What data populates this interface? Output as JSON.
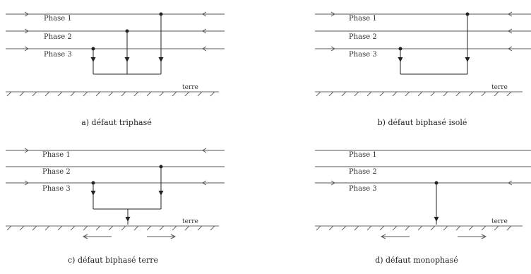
{
  "phases": [
    "Phase 1",
    "Phase 2",
    "Phase 3"
  ],
  "ground_label": "terre",
  "colors": {
    "line": "#555555",
    "ink": "#222222",
    "hatch": "#666666"
  },
  "panels": [
    {
      "id": "a",
      "caption": "a) défaut triphasé"
    },
    {
      "id": "b",
      "caption": "b) défaut biphasé isolé"
    },
    {
      "id": "c",
      "caption": "c) défaut biphasé terre"
    },
    {
      "id": "d",
      "caption": "d) défaut monophasé"
    }
  ]
}
